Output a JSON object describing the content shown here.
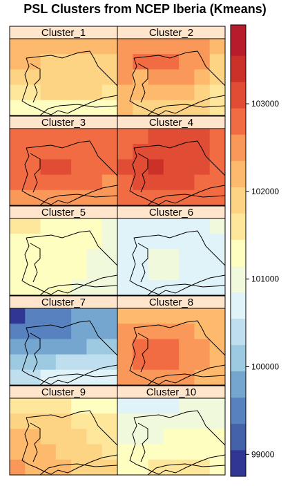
{
  "title": "PSL Clusters from NCEP Iberia (Kmeans)",
  "chart_data": {
    "type": "heatmap",
    "title": "PSL Clusters from NCEP Iberia (Kmeans)",
    "layout": {
      "rows": 5,
      "cols": 2
    },
    "grid_cols": 7,
    "grid_rows": 5,
    "colorbar": {
      "range": [
        98750,
        103900
      ],
      "breaks": [
        98750,
        99050,
        99350,
        99650,
        99950,
        100250,
        100550,
        100850,
        101150,
        101450,
        101750,
        102050,
        102350,
        102650,
        102950,
        103250,
        103550,
        103900
      ],
      "colors": [
        "#313695",
        "#4261a8",
        "#5782bf",
        "#74a6d0",
        "#9ecae1",
        "#c0dfee",
        "#e0f3f8",
        "#f1f9dc",
        "#fefec0",
        "#fee79a",
        "#fdd384",
        "#fdb96c",
        "#f99858",
        "#f26c43",
        "#e04c34",
        "#cc3129",
        "#b61c2b",
        "#a50026"
      ],
      "ticks": [
        99000,
        100000,
        101000,
        102000,
        103000
      ],
      "tick_labels": [
        "99000",
        "100000",
        "101000",
        "102000",
        "103000"
      ]
    },
    "panels": [
      {
        "label": "Cluster_1",
        "values": [
          [
            102100,
            102100,
            102100,
            102300,
            102300,
            102300,
            102100
          ],
          [
            102100,
            102100,
            101950,
            101950,
            101950,
            101950,
            101950
          ],
          [
            101950,
            101950,
            101950,
            101950,
            101950,
            101950,
            101900
          ],
          [
            101600,
            101600,
            101800,
            101800,
            101800,
            101800,
            101600
          ],
          [
            101400,
            101400,
            101400,
            101400,
            101400,
            101400,
            101400
          ]
        ]
      },
      {
        "label": "Cluster_2",
        "values": [
          [
            102400,
            102400,
            102400,
            102600,
            102600,
            102400,
            102100
          ],
          [
            102400,
            102700,
            102700,
            102700,
            102400,
            102400,
            101950
          ],
          [
            102400,
            102100,
            102400,
            102600,
            102400,
            102100,
            101950
          ],
          [
            102100,
            102100,
            102100,
            102100,
            102100,
            101950,
            101600
          ],
          [
            102100,
            101950,
            101950,
            101950,
            101950,
            101800,
            101600
          ]
        ]
      },
      {
        "label": "Cluster_3",
        "values": [
          [
            102800,
            102800,
            102800,
            102800,
            102800,
            102700,
            102700
          ],
          [
            102800,
            102900,
            102900,
            102900,
            102900,
            102800,
            102700
          ],
          [
            102800,
            102800,
            103000,
            103000,
            102900,
            102800,
            102700
          ],
          [
            102700,
            102800,
            102800,
            102800,
            102800,
            102700,
            102600
          ],
          [
            102400,
            102400,
            102400,
            102400,
            102400,
            102400,
            102400
          ]
        ]
      },
      {
        "label": "Cluster_4",
        "values": [
          [
            102800,
            102800,
            103000,
            103000,
            103000,
            103000,
            102900
          ],
          [
            102900,
            103100,
            103100,
            103100,
            103100,
            103000,
            102900
          ],
          [
            103000,
            103100,
            103500,
            103100,
            103100,
            103000,
            102900
          ],
          [
            102900,
            103000,
            103100,
            103100,
            103000,
            102900,
            102800
          ],
          [
            102700,
            102900,
            102900,
            102900,
            102900,
            102800,
            102700
          ]
        ]
      },
      {
        "label": "Cluster_5",
        "values": [
          [
            101600,
            101600,
            101300,
            101300,
            101300,
            101300,
            101000
          ],
          [
            101300,
            101300,
            101300,
            101300,
            101300,
            101300,
            101000
          ],
          [
            101300,
            101300,
            101300,
            101300,
            101300,
            101000,
            101000
          ],
          [
            101300,
            101300,
            101300,
            101300,
            101300,
            101000,
            101000
          ],
          [
            101300,
            101300,
            101300,
            101300,
            101000,
            101000,
            101000
          ]
        ]
      },
      {
        "label": "Cluster_6",
        "values": [
          [
            100700,
            100700,
            100700,
            100700,
            100700,
            100700,
            100900
          ],
          [
            100700,
            100700,
            100700,
            100700,
            100700,
            100700,
            100700
          ],
          [
            100700,
            100700,
            100900,
            100900,
            100700,
            100700,
            100700
          ],
          [
            100700,
            100700,
            100900,
            100900,
            100700,
            100700,
            100700
          ],
          [
            100700,
            100700,
            100700,
            100700,
            100700,
            100700,
            100700
          ]
        ]
      },
      {
        "label": "Cluster_7",
        "values": [
          [
            99000,
            99400,
            99400,
            99400,
            99700,
            99700,
            99700
          ],
          [
            99400,
            99400,
            99400,
            99400,
            99700,
            99700,
            99700
          ],
          [
            99700,
            99700,
            99700,
            99700,
            99700,
            100000,
            100000
          ],
          [
            100000,
            100000,
            100000,
            100300,
            100300,
            100300,
            100300
          ],
          [
            100300,
            100300,
            100700,
            100700,
            100700,
            100700,
            100700
          ]
        ]
      },
      {
        "label": "Cluster_8",
        "values": [
          [
            102100,
            102100,
            102100,
            102100,
            102100,
            102100,
            102100
          ],
          [
            102400,
            102400,
            102400,
            102400,
            102400,
            102100,
            102100
          ],
          [
            102400,
            102700,
            102700,
            102700,
            102400,
            102400,
            102100
          ],
          [
            102400,
            102700,
            102700,
            102700,
            102400,
            102400,
            102100
          ],
          [
            102400,
            102400,
            102400,
            102400,
            102400,
            102100,
            102100
          ]
        ]
      },
      {
        "label": "Cluster_9",
        "values": [
          [
            101600,
            101600,
            101600,
            101600,
            101300,
            101300,
            101300
          ],
          [
            101900,
            101900,
            101900,
            101900,
            101600,
            101600,
            101600
          ],
          [
            102100,
            102100,
            101900,
            101900,
            101900,
            101600,
            101600
          ],
          [
            102100,
            102100,
            102100,
            101900,
            101900,
            101900,
            101600
          ],
          [
            102400,
            102100,
            102100,
            102100,
            101900,
            101900,
            101900
          ]
        ]
      },
      {
        "label": "Cluster_10",
        "values": [
          [
            100700,
            100700,
            100700,
            100700,
            100900,
            101000,
            101000
          ],
          [
            100900,
            100900,
            100900,
            101000,
            101000,
            101000,
            101000
          ],
          [
            101000,
            101000,
            101000,
            101300,
            101300,
            101300,
            101300
          ],
          [
            101300,
            101300,
            101300,
            101300,
            101300,
            101300,
            101300
          ],
          [
            101300,
            101300,
            101600,
            101600,
            101600,
            101600,
            101300
          ]
        ]
      }
    ]
  }
}
